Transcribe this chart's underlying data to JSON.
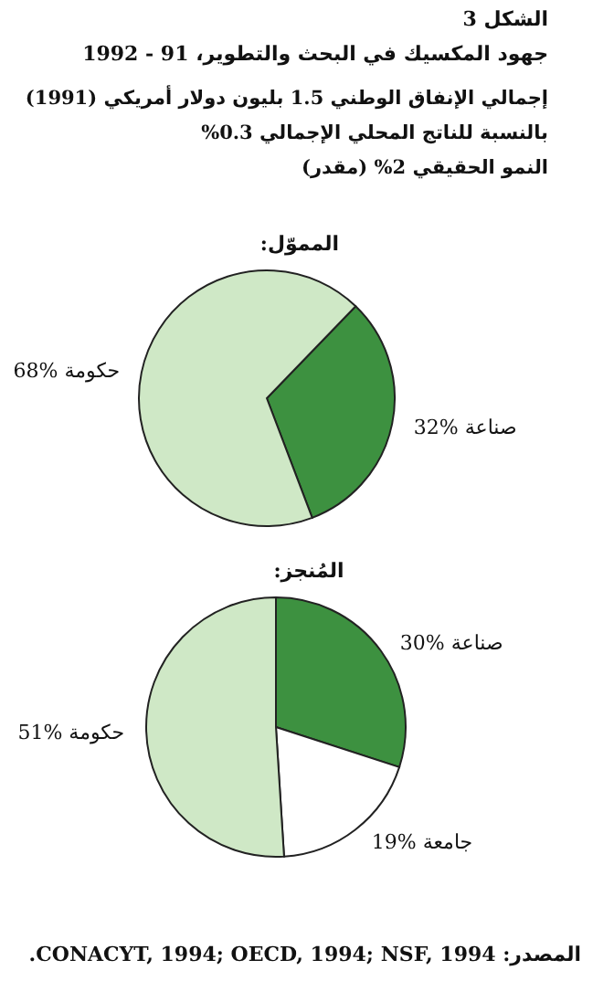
{
  "chart_data": [
    {
      "type": "pie",
      "title": "المموّل:",
      "categories": [
        "صناعة",
        "حكومة"
      ],
      "values": [
        32,
        68
      ],
      "value_labels": [
        "32%",
        "68%"
      ],
      "colors": [
        "#3d9140",
        "#cfe8c6"
      ],
      "annotations": [
        "الشكل 3",
        "جهود المكسيك في البحث والتطوير، 91 - 1992",
        "إجمالي الإنفاق الوطني 1.5 بليون دولار أمريكي (1991)",
        "بالنسبة للناتج المحلي الإجمالي 0.3%",
        "النمو الحقيقي 2% (مقدر)"
      ]
    },
    {
      "type": "pie",
      "title": "المُنجز:",
      "categories": [
        "صناعة",
        "جامعة",
        "حكومة"
      ],
      "values": [
        30,
        19,
        51
      ],
      "value_labels": [
        "30%",
        "19%",
        "51%"
      ],
      "colors": [
        "#3d9140",
        "#ffffff",
        "#cfe8c6"
      ],
      "annotations": [
        "المصدر: CONACYT, 1994; OECD, 1994; NSF, 1994."
      ]
    }
  ]
}
